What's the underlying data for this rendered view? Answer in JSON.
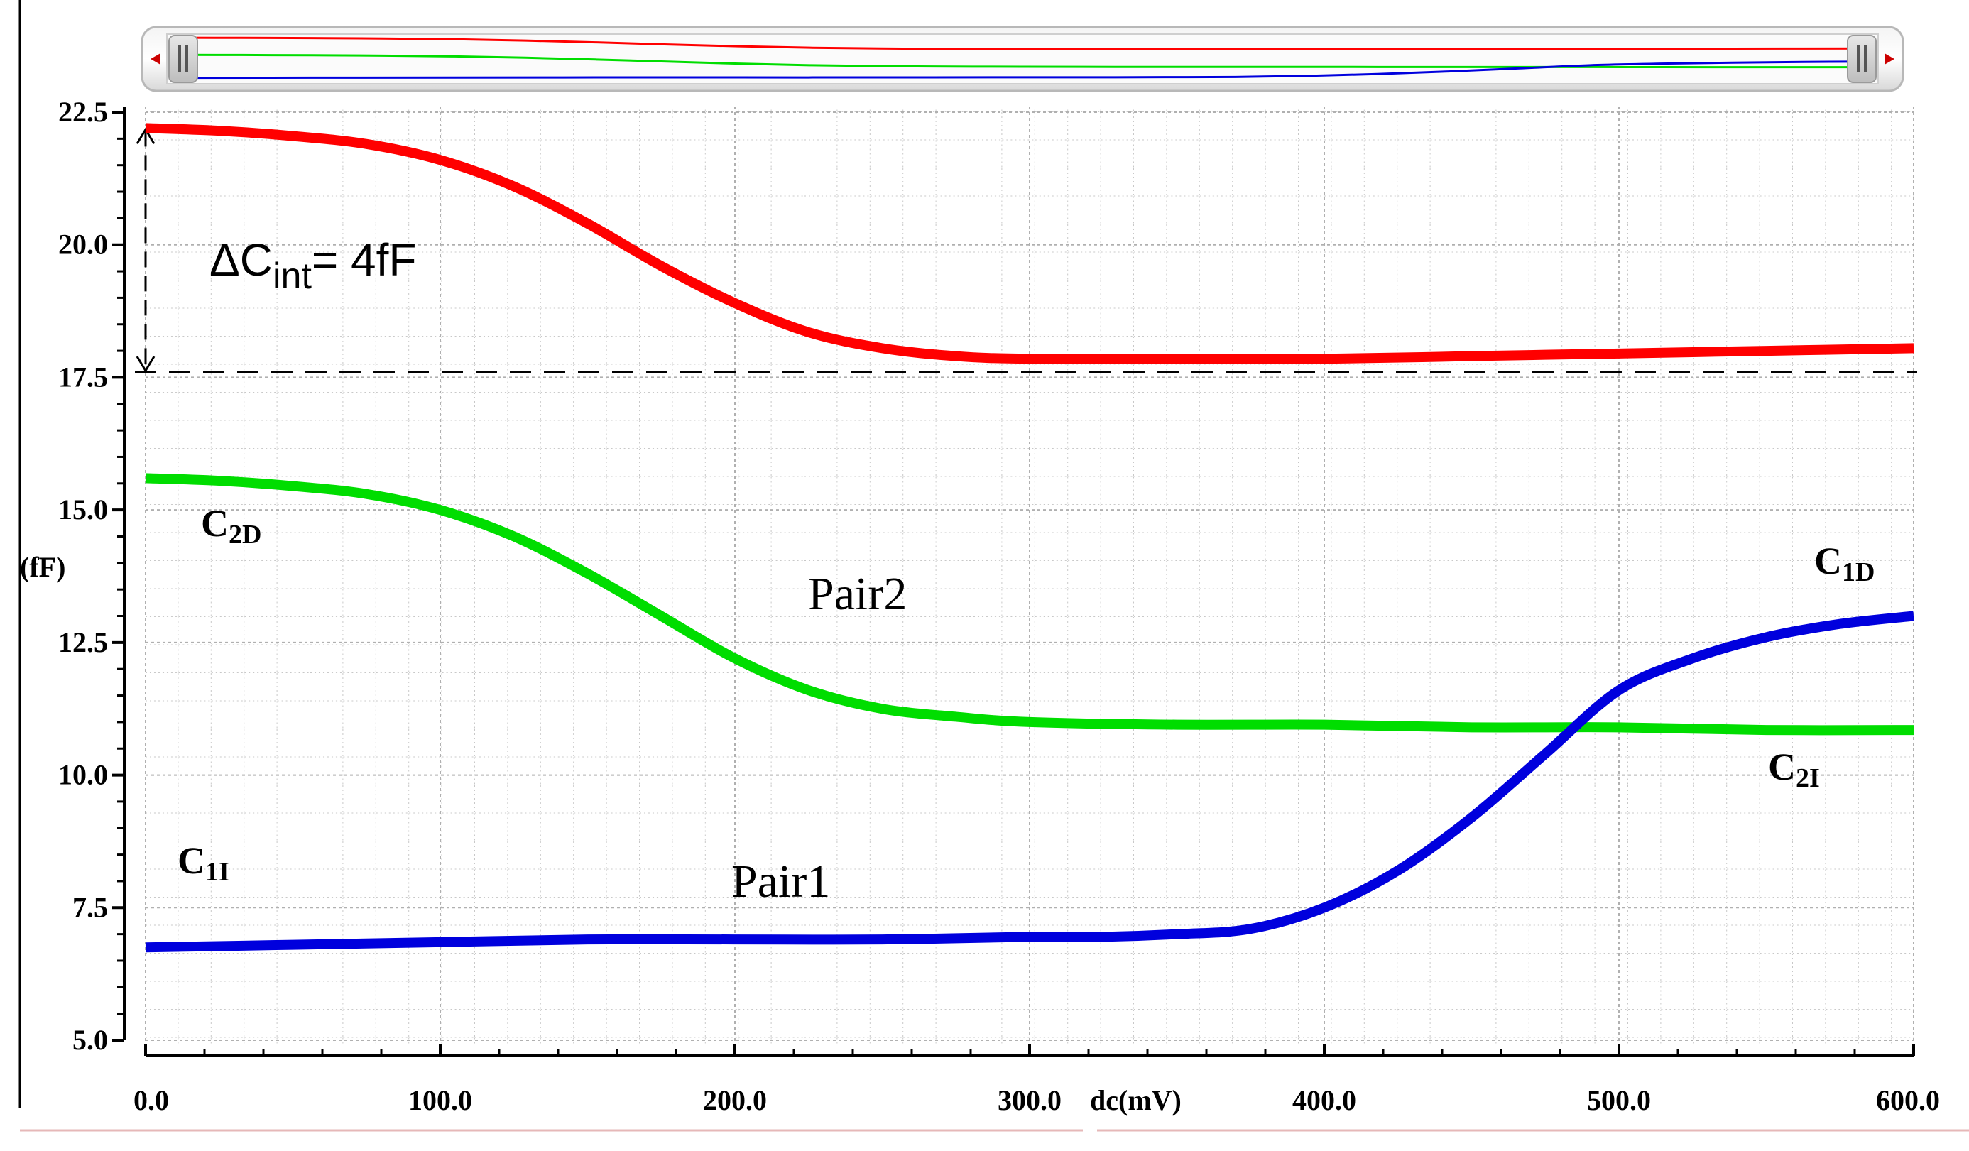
{
  "chart_data": {
    "type": "line",
    "xlabel": "dc(mV)",
    "ylabel": "(fF)",
    "xlim": [
      0,
      600
    ],
    "ylim": [
      5,
      22.5
    ],
    "x_ticks": [
      "0.0",
      "100.0",
      "200.0",
      "300.0",
      "400.0",
      "500.0",
      "600.0"
    ],
    "y_ticks": [
      "5.0",
      "7.5",
      "10.0",
      "12.5",
      "15.0",
      "17.5",
      "20.0",
      "22.5"
    ],
    "grid": true,
    "reference_line_y": 17.6,
    "series": [
      {
        "key": "red",
        "color": "#ff0000",
        "x": [
          0,
          25,
          50,
          75,
          100,
          125,
          150,
          175,
          200,
          225,
          250,
          275,
          300,
          350,
          400,
          450,
          500,
          550,
          600
        ],
        "y": [
          22.2,
          22.15,
          22.05,
          21.9,
          21.6,
          21.1,
          20.4,
          19.6,
          18.9,
          18.35,
          18.05,
          17.9,
          17.85,
          17.85,
          17.85,
          17.9,
          17.95,
          18.0,
          18.05
        ]
      },
      {
        "key": "green",
        "color": "#00dd00",
        "x": [
          0,
          25,
          50,
          75,
          100,
          125,
          150,
          175,
          200,
          225,
          250,
          275,
          300,
          350,
          400,
          450,
          500,
          550,
          600
        ],
        "y": [
          15.6,
          15.55,
          15.45,
          15.3,
          15.0,
          14.5,
          13.8,
          13.0,
          12.2,
          11.6,
          11.25,
          11.1,
          11.0,
          10.95,
          10.95,
          10.9,
          10.9,
          10.85,
          10.85
        ]
      },
      {
        "key": "blue",
        "color": "#0000dd",
        "x": [
          0,
          50,
          100,
          150,
          200,
          250,
          300,
          325,
          350,
          375,
          400,
          425,
          450,
          475,
          500,
          525,
          550,
          575,
          600
        ],
        "y": [
          6.75,
          6.8,
          6.85,
          6.9,
          6.9,
          6.9,
          6.95,
          6.95,
          7.0,
          7.1,
          7.5,
          8.2,
          9.2,
          10.4,
          11.6,
          12.2,
          12.6,
          12.85,
          13.0
        ]
      }
    ],
    "annotations": {
      "delta_prefix": "ΔC",
      "delta_sub": "int",
      "delta_suffix": "= 4fF",
      "pair2": "Pair2",
      "pair1": "Pair1",
      "c2d_main": "C",
      "c2d_sub": "2D",
      "c1d_main": "C",
      "c1d_sub": "1D",
      "c2i_main": "C",
      "c2i_sub": "2I",
      "c1i_main": "C",
      "c1i_sub": "1I"
    },
    "overview_bar": {
      "left_arrow_color": "#cc0000",
      "right_arrow_color": "#cc0000"
    }
  }
}
